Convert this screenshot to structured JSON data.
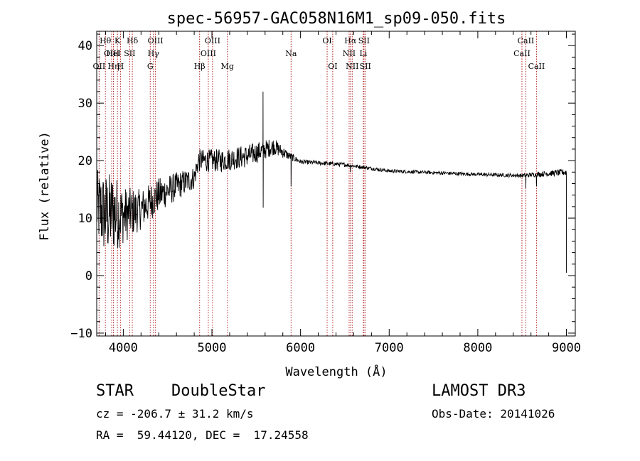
{
  "chart_data": {
    "type": "line",
    "title": "spec-56957-GAC058N16M1_sp09-050.fits",
    "xlabel": "Wavelength (Å)",
    "ylabel": "Flux (relative)",
    "xlim": [
      3700,
      9100
    ],
    "ylim": [
      -10.5,
      42.5
    ],
    "xticks": [
      4000,
      5000,
      6000,
      7000,
      8000,
      9000
    ],
    "yticks": [
      -10,
      0,
      10,
      20,
      30,
      40
    ],
    "x_minor_step": 200,
    "y_minor_step": 2,
    "line_color": "#000000",
    "marker_color": "#b22222",
    "spectral_lines": [
      {
        "label": "OII",
        "wavelength": 3727,
        "row": 3
      },
      {
        "label": "Hθ",
        "wavelength": 3798,
        "row": 1
      },
      {
        "label": "OIII",
        "wavelength": 3869,
        "row": 2
      },
      {
        "label": "Hη",
        "wavelength": 3889,
        "row": 3
      },
      {
        "label": "HeI",
        "wavelength": 3889,
        "row": 2
      },
      {
        "label": "K",
        "wavelength": 3934,
        "row": 1
      },
      {
        "label": "SII",
        "wavelength": 4072,
        "row": 2
      },
      {
        "label": "H",
        "wavelength": 3968,
        "row": 3
      },
      {
        "label": "Hδ",
        "wavelength": 4102,
        "row": 1
      },
      {
        "label": "OIII",
        "wavelength": 4363,
        "row": 1
      },
      {
        "label": "Hγ",
        "wavelength": 4340,
        "row": 2
      },
      {
        "label": "G",
        "wavelength": 4304,
        "row": 3
      },
      {
        "label": "Hβ",
        "wavelength": 4861,
        "row": 3
      },
      {
        "label": "OIII",
        "wavelength": 5007,
        "row": 1
      },
      {
        "label": "OIII",
        "wavelength": 4959,
        "row": 2
      },
      {
        "label": "Mg",
        "wavelength": 5175,
        "row": 3
      },
      {
        "label": "Na",
        "wavelength": 5893,
        "row": 2
      },
      {
        "label": "OI",
        "wavelength": 6300,
        "row": 1
      },
      {
        "label": "OI",
        "wavelength": 6363,
        "row": 3
      },
      {
        "label": "Hα",
        "wavelength": 6563,
        "row": 1
      },
      {
        "label": "NII",
        "wavelength": 6548,
        "row": 2
      },
      {
        "label": "NII",
        "wavelength": 6583,
        "row": 3
      },
      {
        "label": "SII",
        "wavelength": 6716,
        "row": 1
      },
      {
        "label": "Li",
        "wavelength": 6708,
        "row": 2
      },
      {
        "label": "SII",
        "wavelength": 6731,
        "row": 3
      },
      {
        "label": "CaII",
        "wavelength": 8542,
        "row": 1
      },
      {
        "label": "CaII",
        "wavelength": 8498,
        "row": 2
      },
      {
        "label": "CaII",
        "wavelength": 8662,
        "row": 3
      }
    ],
    "flux_anchors": [
      {
        "wavelength": 3700,
        "flux": 12.0,
        "noise": 6.5
      },
      {
        "wavelength": 3800,
        "flux": 10.5,
        "noise": 7.5
      },
      {
        "wavelength": 3900,
        "flux": 11.0,
        "noise": 7.0
      },
      {
        "wavelength": 4000,
        "flux": 10.5,
        "noise": 5.0
      },
      {
        "wavelength": 4200,
        "flux": 11.5,
        "noise": 3.5
      },
      {
        "wavelength": 4400,
        "flux": 14.0,
        "noise": 3.0
      },
      {
        "wavelength": 4600,
        "flux": 15.5,
        "noise": 2.5
      },
      {
        "wavelength": 4800,
        "flux": 17.0,
        "noise": 2.0
      },
      {
        "wavelength": 4850,
        "flux": 20.0,
        "noise": 2.0
      },
      {
        "wavelength": 5100,
        "flux": 20.0,
        "noise": 2.0
      },
      {
        "wavelength": 5400,
        "flux": 20.8,
        "noise": 2.0
      },
      {
        "wavelength": 5700,
        "flux": 22.5,
        "noise": 1.5
      },
      {
        "wavelength": 5850,
        "flux": 21.0,
        "noise": 0.8
      },
      {
        "wavelength": 6000,
        "flux": 19.8,
        "noise": 0.4
      },
      {
        "wavelength": 6500,
        "flux": 19.3,
        "noise": 0.35
      },
      {
        "wavelength": 7000,
        "flux": 18.2,
        "noise": 0.3
      },
      {
        "wavelength": 7500,
        "flux": 17.9,
        "noise": 0.3
      },
      {
        "wavelength": 8000,
        "flux": 17.6,
        "noise": 0.3
      },
      {
        "wavelength": 8500,
        "flux": 17.4,
        "noise": 0.35
      },
      {
        "wavelength": 9000,
        "flux": 18.0,
        "noise": 0.6
      }
    ],
    "flux_features": [
      {
        "wavelength": 5577,
        "flux": 32.0
      },
      {
        "wavelength": 5578,
        "flux": 11.8
      },
      {
        "wavelength": 5893,
        "flux": 15.5
      },
      {
        "wavelength": 6563,
        "flux": 18.0
      },
      {
        "wavelength": 8542,
        "flux": 15.2
      },
      {
        "wavelength": 8662,
        "flux": 15.5
      },
      {
        "wavelength": 9000,
        "flux": 0.5
      }
    ]
  },
  "info": {
    "object_type": "STAR",
    "subclass": "DoubleStar",
    "survey": "LAMOST DR3",
    "redshift_line": "cz = -206.7 ± 31.2 km/s",
    "obs_date_line": "Obs-Date: 20141026",
    "coords_line": "RA =  59.44120, DEC =  17.24558"
  }
}
